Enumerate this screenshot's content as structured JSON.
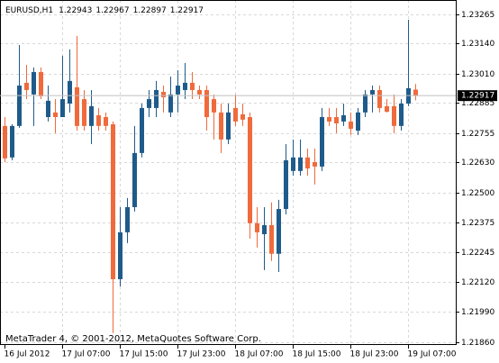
{
  "chart_data": {
    "type": "candlestick",
    "title": "EURUSD,H1",
    "annotation": "MetaTrader 4, © 2001-2012, MetaQuotes Software Corp.",
    "categories": [
      "16 Jul 2012",
      null,
      null,
      null,
      null,
      null,
      null,
      null,
      "17 Jul 07:00",
      null,
      null,
      null,
      null,
      null,
      null,
      null,
      "17 Jul 15:00",
      null,
      null,
      null,
      null,
      null,
      null,
      null,
      "17 Jul 23:00",
      null,
      null,
      null,
      null,
      null,
      null,
      null,
      "18 Jul 07:00",
      null,
      null,
      null,
      null,
      null,
      null,
      null,
      "18 Jul 15:00",
      null,
      null,
      null,
      null,
      null,
      null,
      null,
      "18 Jul 23:00",
      null,
      null,
      null,
      null,
      null,
      null,
      null,
      "19 Jul 07:00",
      null
    ],
    "open": [
      1.22787,
      1.22652,
      1.22787,
      1.22972,
      1.22922,
      1.23018,
      1.22825,
      1.22845,
      1.22825,
      1.22883,
      1.22953,
      1.22902,
      1.22787,
      1.22833,
      1.22825,
      1.22794,
      1.2213,
      1.22331,
      1.22439,
      1.22671,
      1.22864,
      1.22864,
      1.22933,
      1.22845,
      1.22922,
      1.22941,
      1.22972,
      1.22941,
      1.22941,
      1.22902,
      1.22845,
      1.22729,
      1.22864,
      1.22837,
      1.22825,
      1.2237,
      1.22323,
      1.22362,
      1.22239,
      1.22431,
      1.22594,
      1.22594,
      1.22652,
      1.22632,
      1.22613,
      1.22825,
      1.22825,
      1.22806,
      1.22806,
      1.22767,
      1.22845,
      1.22922,
      1.22941,
      1.22872,
      1.22872,
      1.22787,
      1.22883,
      1.22943
    ],
    "high": [
      1.22825,
      1.22794,
      1.23134,
      1.23049,
      1.23038,
      1.23038,
      1.2296,
      1.22902,
      1.23088,
      1.23115,
      1.23173,
      1.22941,
      1.22941,
      1.22864,
      1.22845,
      1.22806,
      1.22439,
      1.22478,
      1.22787,
      1.22883,
      1.22941,
      1.2298,
      1.2296,
      1.22999,
      1.23026,
      1.23057,
      1.23018,
      1.2296,
      1.2296,
      1.22922,
      1.22883,
      1.22883,
      1.22922,
      1.22883,
      1.22845,
      1.22439,
      1.22439,
      1.22459,
      1.2247,
      1.22709,
      1.22729,
      1.22729,
      1.2269,
      1.2269,
      1.22864,
      1.22864,
      1.22864,
      1.22883,
      1.22845,
      1.22864,
      1.22941,
      1.2296,
      1.2296,
      1.22902,
      1.22922,
      1.22902,
      1.23242,
      1.22967
    ],
    "low": [
      1.22632,
      1.2264,
      1.22779,
      1.22902,
      1.22787,
      1.22902,
      1.22806,
      1.22756,
      1.22825,
      1.22845,
      1.22767,
      1.22767,
      1.22709,
      1.22767,
      1.22767,
      1.21899,
      1.22099,
      1.22285,
      1.2242,
      1.22652,
      1.22825,
      1.22825,
      1.22845,
      1.22825,
      1.22845,
      1.22902,
      1.22902,
      1.22902,
      1.22767,
      1.22729,
      1.22671,
      1.22709,
      1.22787,
      1.22787,
      1.22304,
      1.22266,
      1.22169,
      1.22208,
      1.22161,
      1.22408,
      1.22574,
      1.22574,
      1.22574,
      1.22536,
      1.22594,
      1.22787,
      1.22756,
      1.22787,
      1.22748,
      1.22748,
      1.22825,
      1.22845,
      1.22845,
      1.22845,
      1.22756,
      1.22767,
      1.22872,
      1.22897
    ],
    "close": [
      1.22648,
      1.22787,
      1.2296,
      1.22941,
      1.23018,
      1.22914,
      1.22895,
      1.22825,
      1.22902,
      1.2298,
      1.22787,
      1.22787,
      1.22872,
      1.22787,
      1.22787,
      1.2213,
      1.22331,
      1.22439,
      1.22671,
      1.22864,
      1.22902,
      1.22941,
      1.2291,
      1.22922,
      1.2296,
      1.22972,
      1.22941,
      1.22922,
      1.22825,
      1.22845,
      1.22729,
      1.22845,
      1.22806,
      1.22814,
      1.2237,
      1.22331,
      1.22362,
      1.22239,
      1.22431,
      1.2264,
      1.22652,
      1.22652,
      1.22605,
      1.22613,
      1.22825,
      1.22806,
      1.22798,
      1.22833,
      1.22775,
      1.22845,
      1.22922,
      1.22941,
      1.22864,
      1.22848,
      1.22787,
      1.22883,
      1.22949,
      1.22917
    ],
    "up_color": "#1f5b8a",
    "down_color": "#f06a3c",
    "ylim": [
      1.21848,
      1.23327
    ],
    "yticks": [
      1.23265,
      {
        "value": 1.2314,
        "label": "1.23140"
      },
      {
        "value": 1.2301,
        "label": "1.23010"
      },
      1.22885,
      1.22755,
      {
        "value": 1.2263,
        "label": "1.22630"
      },
      {
        "value": 1.225,
        "label": "1.22500"
      },
      1.22375,
      1.22245,
      {
        "value": 1.2212,
        "label": "1.22120"
      },
      {
        "value": 1.2199,
        "label": "1.21990"
      },
      {
        "value": 1.2186,
        "label": "1.21860"
      }
    ],
    "grid": true
  }
}
